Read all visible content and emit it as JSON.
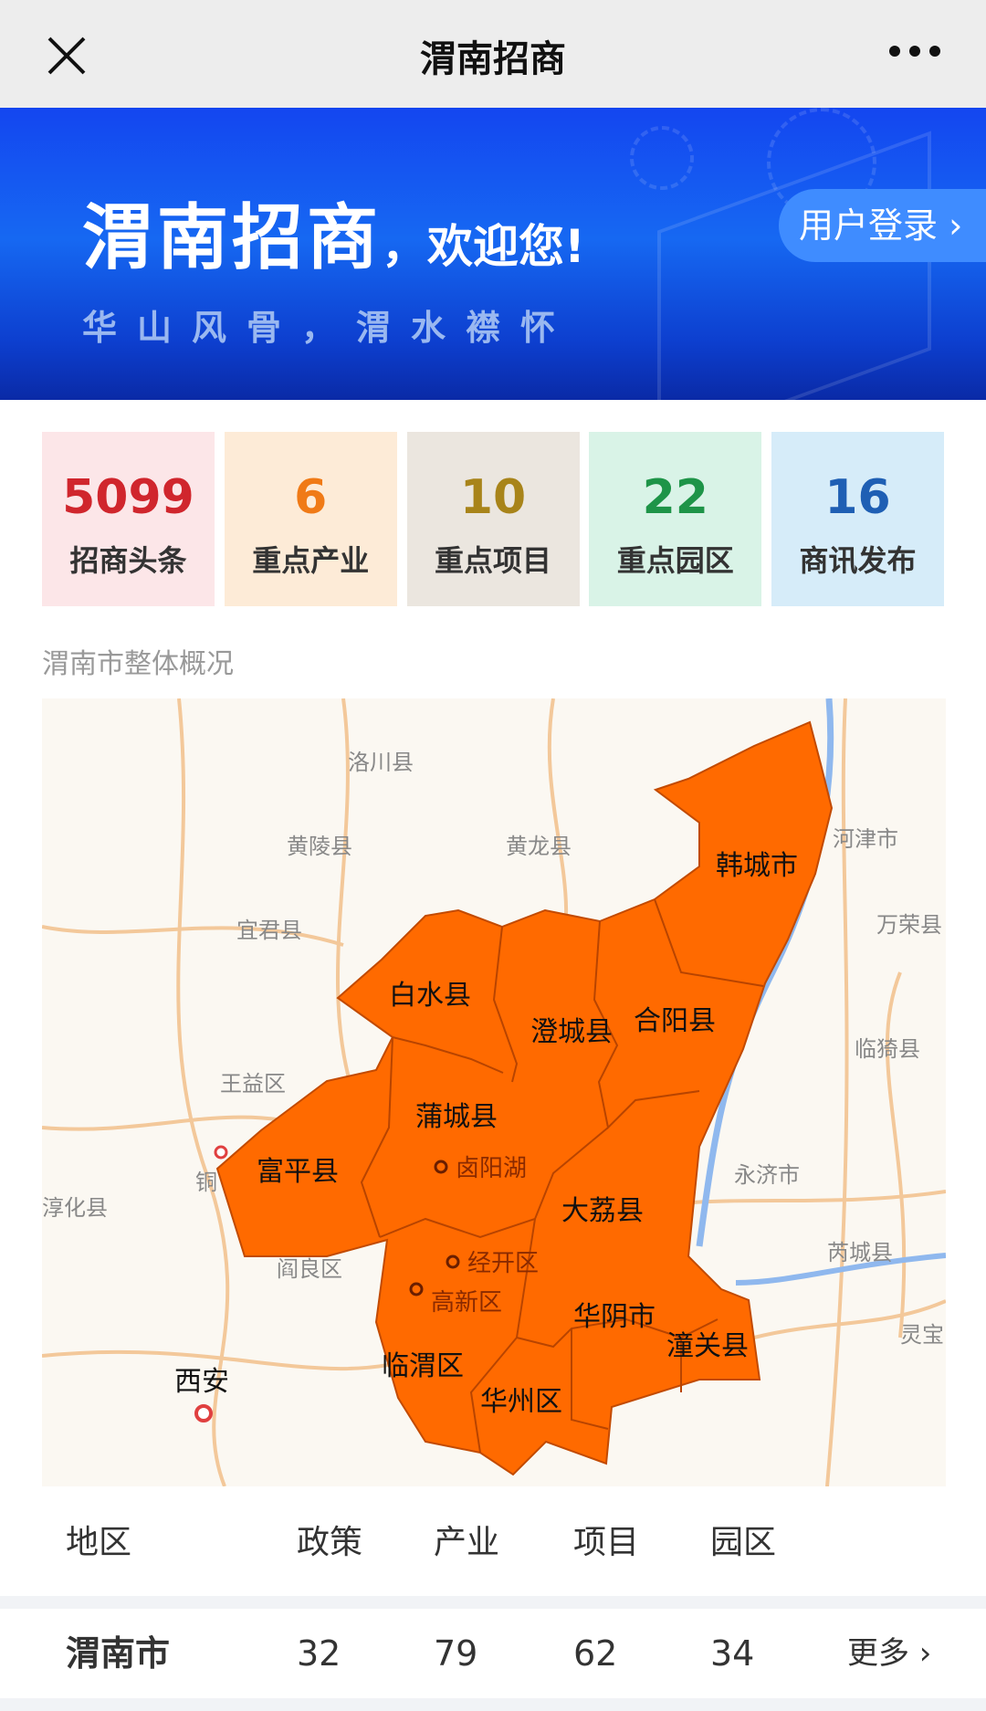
{
  "nav": {
    "title": "渭南招商",
    "close_icon": "close-icon",
    "more_icon": "more-dots-icon"
  },
  "banner": {
    "title": "渭南招商",
    "welcome": "，欢迎您!",
    "slogan": "华山风骨，渭水襟怀",
    "login": "用户登录",
    "login_icon": "chevron-right-icon"
  },
  "stats": [
    {
      "value": "5099",
      "label": "招商头条",
      "color": "#d0262d",
      "bg": "#fce6e8"
    },
    {
      "value": "6",
      "label": "重点产业",
      "color": "#f07a16",
      "bg": "#fdebd7"
    },
    {
      "value": "10",
      "label": "重点项目",
      "color": "#a8841a",
      "bg": "#ebe6df"
    },
    {
      "value": "22",
      "label": "重点园区",
      "color": "#1e9448",
      "bg": "#d9f3e7"
    },
    {
      "value": "16",
      "label": "商讯发布",
      "color": "#1f5fb4",
      "bg": "#d6ecf9"
    }
  ],
  "section_title": "渭南市整体概况",
  "map": {
    "highlight_color": "#ff6a00",
    "districts": [
      "韩城市",
      "白水县",
      "澄城县",
      "合阳县",
      "蒲城县",
      "富平县",
      "大荔县",
      "华阴市",
      "潼关县",
      "临渭区",
      "华州区"
    ],
    "pois": [
      "卤阳湖",
      "经开区",
      "高新区"
    ],
    "surrounding": [
      "洛川县",
      "黄陵县",
      "黄龙县",
      "宜君县",
      "王益区",
      "铜",
      "淳化县",
      "阎良区",
      "河津市",
      "万荣县",
      "临猗县",
      "永济市",
      "芮城县",
      "灵宝"
    ],
    "city": "西安"
  },
  "table": {
    "headers": [
      "地区",
      "政策",
      "产业",
      "项目",
      "园区"
    ],
    "rows": [
      {
        "region": "渭南市",
        "policy": "32",
        "industry": "79",
        "project": "62",
        "park": "34",
        "more": "更多"
      }
    ]
  }
}
